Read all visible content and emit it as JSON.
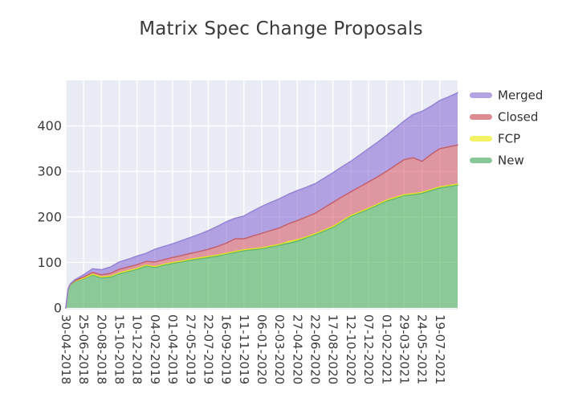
{
  "title": "Matrix Spec Change Proposals",
  "colors": {
    "page_bg": "#ffffff",
    "plot_bg": "#e9ecf4",
    "grid": "#ffffff",
    "title_color": "#3b3b3b",
    "tick_color": "#3c3c3c",
    "legend_text_color": "#303030"
  },
  "legend": {
    "items_top_to_bottom": [
      "Merged",
      "Closed",
      "FCP",
      "New"
    ]
  },
  "chart_data": {
    "type": "area",
    "stacked": true,
    "title": "Matrix Spec Change Proposals",
    "xlabel": "",
    "ylabel": "",
    "grid": true,
    "legend_position": "right-outside",
    "x_unit": "days since 30-04-2018",
    "x_max_offset": 1232,
    "x_tick_offsets": [
      0,
      56,
      112,
      168,
      224,
      280,
      336,
      392,
      448,
      504,
      560,
      616,
      672,
      728,
      784,
      840,
      896,
      952,
      1008,
      1064,
      1120,
      1176
    ],
    "x_tick_labels": [
      "30-04-2018",
      "25-06-2018",
      "20-08-2018",
      "15-10-2018",
      "10-12-2018",
      "04-02-2019",
      "01-04-2019",
      "27-05-2019",
      "22-07-2019",
      "16-09-2019",
      "11-11-2019",
      "06-01-2020",
      "02-03-2020",
      "27-04-2020",
      "22-06-2020",
      "17-08-2020",
      "12-10-2020",
      "07-12-2020",
      "01-02-2021",
      "29-03-2021",
      "24-05-2021",
      "19-07-2021"
    ],
    "y_ticks": [
      0,
      100,
      200,
      300,
      400
    ],
    "ylim": [
      0,
      500
    ],
    "x_offsets": [
      0,
      7,
      14,
      28,
      56,
      84,
      112,
      140,
      168,
      196,
      224,
      252,
      280,
      308,
      336,
      364,
      392,
      420,
      448,
      476,
      504,
      532,
      560,
      588,
      616,
      644,
      672,
      700,
      728,
      756,
      784,
      812,
      840,
      868,
      896,
      924,
      952,
      980,
      1008,
      1036,
      1064,
      1092,
      1120,
      1148,
      1176,
      1204,
      1232
    ],
    "series_bottom_to_top": [
      {
        "name": "New",
        "fill": "rgba(80,180,95,0.62)",
        "line": "#57b56a",
        "swatch": "#88c898",
        "values": [
          0,
          40,
          50,
          58,
          64,
          72,
          66,
          68,
          75,
          80,
          85,
          92,
          89,
          94,
          98,
          101,
          105,
          108,
          111,
          114,
          118,
          122,
          126,
          128,
          130,
          134,
          138,
          142,
          147,
          154,
          161,
          169,
          177,
          189,
          201,
          209,
          217,
          226,
          235,
          241,
          247,
          249,
          252,
          258,
          264,
          267,
          270
        ]
      },
      {
        "name": "FCP",
        "fill": "rgba(247,240,40,0.65)",
        "line": "#e3de2f",
        "swatch": "#f4f165",
        "values": [
          0,
          1,
          1,
          1,
          1,
          2,
          2,
          2,
          2,
          2,
          2,
          2,
          2,
          2,
          2,
          2,
          2,
          2,
          2,
          2,
          2,
          2,
          2,
          2,
          2,
          2,
          2,
          4,
          3,
          2,
          2,
          2,
          2,
          2,
          2,
          2,
          2,
          2,
          2,
          2,
          2,
          2,
          2,
          2,
          2,
          2,
          2
        ]
      },
      {
        "name": "Closed",
        "fill": "rgba(214,80,92,0.55)",
        "line": "#c4606e",
        "swatch": "#dd8a93",
        "values": [
          0,
          0,
          1,
          1,
          3,
          4,
          5,
          6,
          8,
          8,
          8,
          8,
          10,
          10,
          11,
          12,
          13,
          14,
          16,
          19,
          22,
          28,
          24,
          28,
          32,
          34,
          36,
          39,
          42,
          44,
          45,
          49,
          53,
          53,
          52,
          55,
          58,
          60,
          63,
          70,
          77,
          79,
          68,
          77,
          84,
          85,
          86
        ]
      },
      {
        "name": "Merged",
        "fill": "rgba(141,112,214,0.60)",
        "line": "#9583d6",
        "swatch": "#b3a3e2",
        "values": [
          0,
          1,
          1,
          2,
          5,
          8,
          11,
          14,
          16,
          17,
          19,
          18,
          28,
          29,
          30,
          33,
          35,
          38,
          41,
          44,
          47,
          45,
          50,
          55,
          59,
          62,
          64,
          65,
          66,
          65,
          65,
          65,
          65,
          66,
          67,
          70,
          73,
          76,
          79,
          82,
          85,
          95,
          110,
          106,
          106,
          110,
          115
        ]
      }
    ]
  }
}
